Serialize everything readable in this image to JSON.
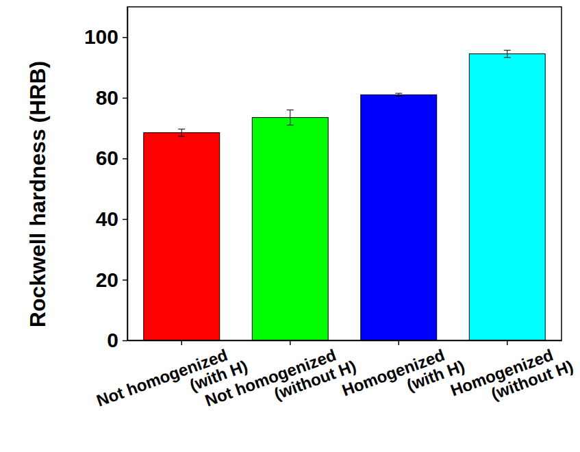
{
  "chart_data": {
    "type": "bar",
    "y_label": "Rockwell hardness (HRB)",
    "categories": [
      "Not homogenized (with H)",
      "Not homogenized (without H)",
      "Homogenized (with H)",
      "Homogenized (without H)"
    ],
    "values": [
      68.5,
      73.5,
      81,
      94.5
    ],
    "errors": [
      1.2,
      2.5,
      0.5,
      1.2
    ],
    "colors": [
      "#ff0000",
      "#00ff00",
      "#0000ff",
      "#00ffff"
    ],
    "ylim": [
      0,
      110
    ],
    "yticks": [
      0,
      20,
      40,
      60,
      80,
      100
    ],
    "grid": false
  }
}
